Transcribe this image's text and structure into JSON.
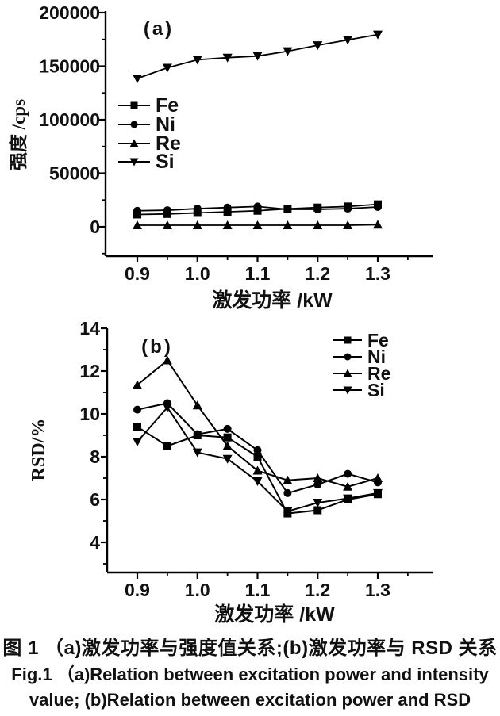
{
  "caption": {
    "line1": "图 1 （a)激发功率与强度值关系;(b)激发功率与 RSD 关系",
    "line2": "Fig.1 （a)Relation between excitation power and intensity",
    "line3": "value; (b)Relation between excitation power and RSD"
  },
  "chart_data": [
    {
      "type": "line",
      "panel_label": "(a)",
      "title": "",
      "xlabel": "激发功率 /kW",
      "ylabel": "强度 /cps",
      "x": [
        0.9,
        0.95,
        1.0,
        1.05,
        1.1,
        1.15,
        1.2,
        1.25,
        1.3
      ],
      "xticks": [
        0.9,
        1.0,
        1.1,
        1.2,
        1.3
      ],
      "xtick_labels": [
        "0.9",
        "1.0",
        "1.1",
        "1.2",
        "1.3"
      ],
      "xminor": [
        0.95,
        1.05,
        1.15,
        1.25,
        1.35
      ],
      "yticks": [
        0,
        50000,
        100000,
        150000,
        200000
      ],
      "ytick_labels": [
        "0",
        "50000",
        "100000",
        "150000",
        "200000"
      ],
      "yminor": [
        -25000,
        25000,
        75000,
        125000,
        175000
      ],
      "ylim": [
        0,
        200000
      ],
      "grid": false,
      "legend_position": "middle-left",
      "series": [
        {
          "name": "Fe",
          "marker": "square",
          "values": [
            11500,
            12000,
            13000,
            14000,
            15000,
            16800,
            18000,
            19000,
            21000
          ]
        },
        {
          "name": "Ni",
          "marker": "circle",
          "values": [
            15000,
            15500,
            17000,
            18000,
            19000,
            16300,
            16300,
            17000,
            18500
          ]
        },
        {
          "name": "Re",
          "marker": "triangle-up",
          "values": [
            1500,
            1500,
            1500,
            1500,
            1500,
            1500,
            1500,
            1500,
            2000
          ]
        },
        {
          "name": "Si",
          "marker": "triangle-down",
          "values": [
            138500,
            148500,
            156000,
            158000,
            159500,
            164000,
            169500,
            174500,
            179500
          ]
        }
      ]
    },
    {
      "type": "line",
      "panel_label": "(b)",
      "title": "",
      "xlabel": "激发功率 /kW",
      "ylabel": "RSD/%",
      "x": [
        0.9,
        0.95,
        1.0,
        1.05,
        1.1,
        1.15,
        1.2,
        1.25,
        1.3
      ],
      "xticks": [
        0.9,
        1.0,
        1.1,
        1.2,
        1.3
      ],
      "xtick_labels": [
        "0.9",
        "1.0",
        "1.1",
        "1.2",
        "1.3"
      ],
      "xminor": [
        0.95,
        1.05,
        1.15,
        1.25,
        1.35
      ],
      "yticks": [
        4,
        6,
        8,
        10,
        12,
        14
      ],
      "ytick_labels": [
        "4",
        "6",
        "8",
        "10",
        "12",
        "14"
      ],
      "yminor": [
        3,
        5,
        7,
        9,
        11,
        13
      ],
      "ylim": [
        4,
        14
      ],
      "grid": false,
      "legend_position": "top-right",
      "series": [
        {
          "name": "Fe",
          "marker": "square",
          "values": [
            9.4,
            8.5,
            9.0,
            8.9,
            8.0,
            5.35,
            5.5,
            6.0,
            6.25
          ]
        },
        {
          "name": "Ni",
          "marker": "circle",
          "values": [
            10.2,
            10.5,
            9.05,
            9.3,
            8.3,
            6.3,
            6.7,
            7.2,
            6.8
          ]
        },
        {
          "name": "Re",
          "marker": "triangle-up",
          "values": [
            11.35,
            12.5,
            10.4,
            8.5,
            7.35,
            6.9,
            7.0,
            6.6,
            7.0
          ]
        },
        {
          "name": "Si",
          "marker": "triangle-down",
          "values": [
            8.7,
            10.3,
            8.2,
            7.9,
            6.85,
            5.45,
            5.85,
            6.05,
            6.3
          ]
        }
      ]
    }
  ]
}
